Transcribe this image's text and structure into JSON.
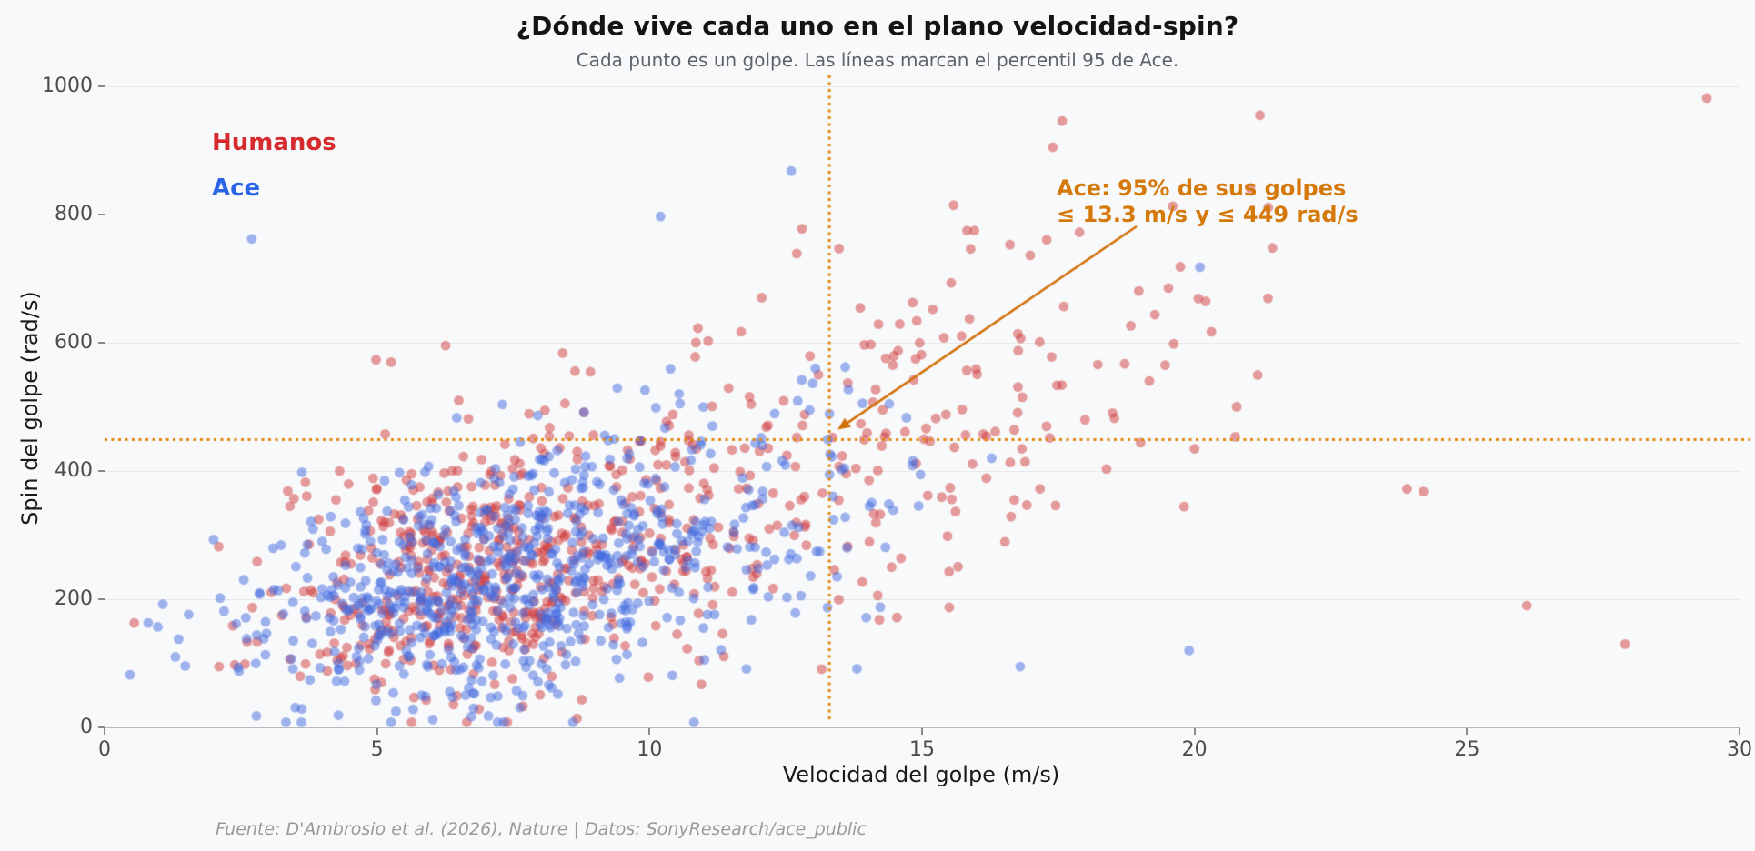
{
  "page": {
    "background": "#f8f9fa"
  },
  "header": {
    "title": "¿Dónde vive cada uno en el plano velocidad-spin?",
    "subtitle": "Cada punto es un golpe. Las líneas marcan el percentil 95 de Ace."
  },
  "legend": {
    "items": [
      {
        "label": "Humanos",
        "color": "#d62b2e"
      },
      {
        "label": "Ace",
        "color": "#2b66e8"
      }
    ]
  },
  "annotation": {
    "line1": "Ace: 95% de sus golpes",
    "line2": "≤ 13.3 m/s y ≤ 449 rad/s",
    "color": "#d4790a",
    "arrow_color": "#d2700a"
  },
  "axes": {
    "xlabel": "Velocidad del golpe (m/s)",
    "ylabel": "Spin del golpe (rad/s)"
  },
  "footer": {
    "source": "Fuente: D'Ambrosio et al. (2026), Nature | Datos: SonyResearch/ace_public"
  },
  "chart_data": {
    "type": "scatter",
    "title": "¿Dónde vive cada uno en el plano velocidad-spin?",
    "subtitle": "Cada punto es un golpe. Las líneas marcan el percentil 95 de Ace.",
    "xlabel": "Velocidad del golpe (m/s)",
    "ylabel": "Spin del golpe (rad/s)",
    "xlim": [
      0,
      30
    ],
    "ylim": [
      0,
      1000
    ],
    "xticks": [
      0,
      5,
      10,
      15,
      20,
      25,
      30
    ],
    "yticks": [
      0,
      200,
      400,
      600,
      800,
      1000
    ],
    "grid": "horizontal-only",
    "legend_position": "upper-left-inside",
    "percentile_lines": {
      "x_value": 13.3,
      "y_value": 449,
      "style": "dotted",
      "color": "#e1870e",
      "meaning": "percentil 95 de Ace"
    },
    "series": [
      {
        "name": "Humanos",
        "point_color": "#d03a3c",
        "opacity": 0.5,
        "count": 738,
        "seed": 42,
        "clusters": [
          {
            "weight": 0.58,
            "mx": 6.9,
            "my": 235,
            "sx": 1.9,
            "sy": 95,
            "rho": 0.25
          },
          {
            "weight": 0.42,
            "mx": 12.8,
            "my": 430,
            "sx": 4.2,
            "sy": 170,
            "rho": 0.55
          }
        ],
        "outliers": [
          [
            21.2,
            955
          ],
          [
            17.4,
            905
          ],
          [
            26.1,
            190
          ],
          [
            27.9,
            130
          ],
          [
            24.2,
            368
          ],
          [
            23.9,
            372
          ],
          [
            3.4,
            345
          ],
          [
            2.1,
            95
          ]
        ]
      },
      {
        "name": "Ace",
        "point_color": "#4169e0",
        "opacity": 0.5,
        "count": 779,
        "seed": 7,
        "clusters": [
          {
            "weight": 0.82,
            "mx": 7.0,
            "my": 225,
            "sx": 2.1,
            "sy": 95,
            "rho": 0.3
          },
          {
            "weight": 0.18,
            "mx": 10.6,
            "my": 330,
            "sx": 2.2,
            "sy": 110,
            "rho": 0.2
          }
        ],
        "outliers": [
          [
            2.7,
            762
          ],
          [
            12.6,
            868
          ],
          [
            10.2,
            797
          ],
          [
            20.1,
            718
          ],
          [
            19.9,
            120
          ],
          [
            16.8,
            95
          ],
          [
            0.8,
            163
          ],
          [
            1.3,
            110
          ],
          [
            2.0,
            293
          ]
        ]
      }
    ]
  }
}
